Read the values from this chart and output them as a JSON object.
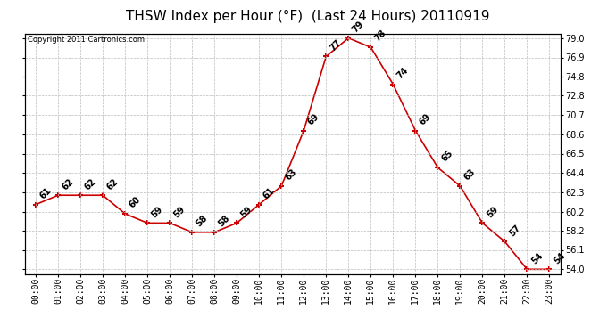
{
  "title": "THSW Index per Hour (°F)  (Last 24 Hours) 20110919",
  "copyright": "Copyright 2011 Cartronics.com",
  "hours": [
    "00:00",
    "01:00",
    "02:00",
    "03:00",
    "04:00",
    "05:00",
    "06:00",
    "07:00",
    "08:00",
    "09:00",
    "10:00",
    "11:00",
    "12:00",
    "13:00",
    "14:00",
    "15:00",
    "16:00",
    "17:00",
    "18:00",
    "19:00",
    "20:00",
    "21:00",
    "22:00",
    "23:00"
  ],
  "values": [
    61,
    62,
    62,
    62,
    60,
    59,
    59,
    58,
    58,
    59,
    61,
    63,
    69,
    77,
    79,
    78,
    74,
    69,
    65,
    63,
    59,
    57,
    54,
    54
  ],
  "line_color": "#cc0000",
  "marker_color": "#cc0000",
  "bg_color": "#ffffff",
  "grid_color": "#bbbbbb",
  "ylim_min": 54.0,
  "ylim_max": 79.0,
  "yticks": [
    54.0,
    56.1,
    58.2,
    60.2,
    62.3,
    64.4,
    66.5,
    68.6,
    70.7,
    72.8,
    74.8,
    76.9,
    79.0
  ],
  "title_fontsize": 11,
  "label_fontsize": 7,
  "axis_fontsize": 7,
  "copyright_fontsize": 6
}
